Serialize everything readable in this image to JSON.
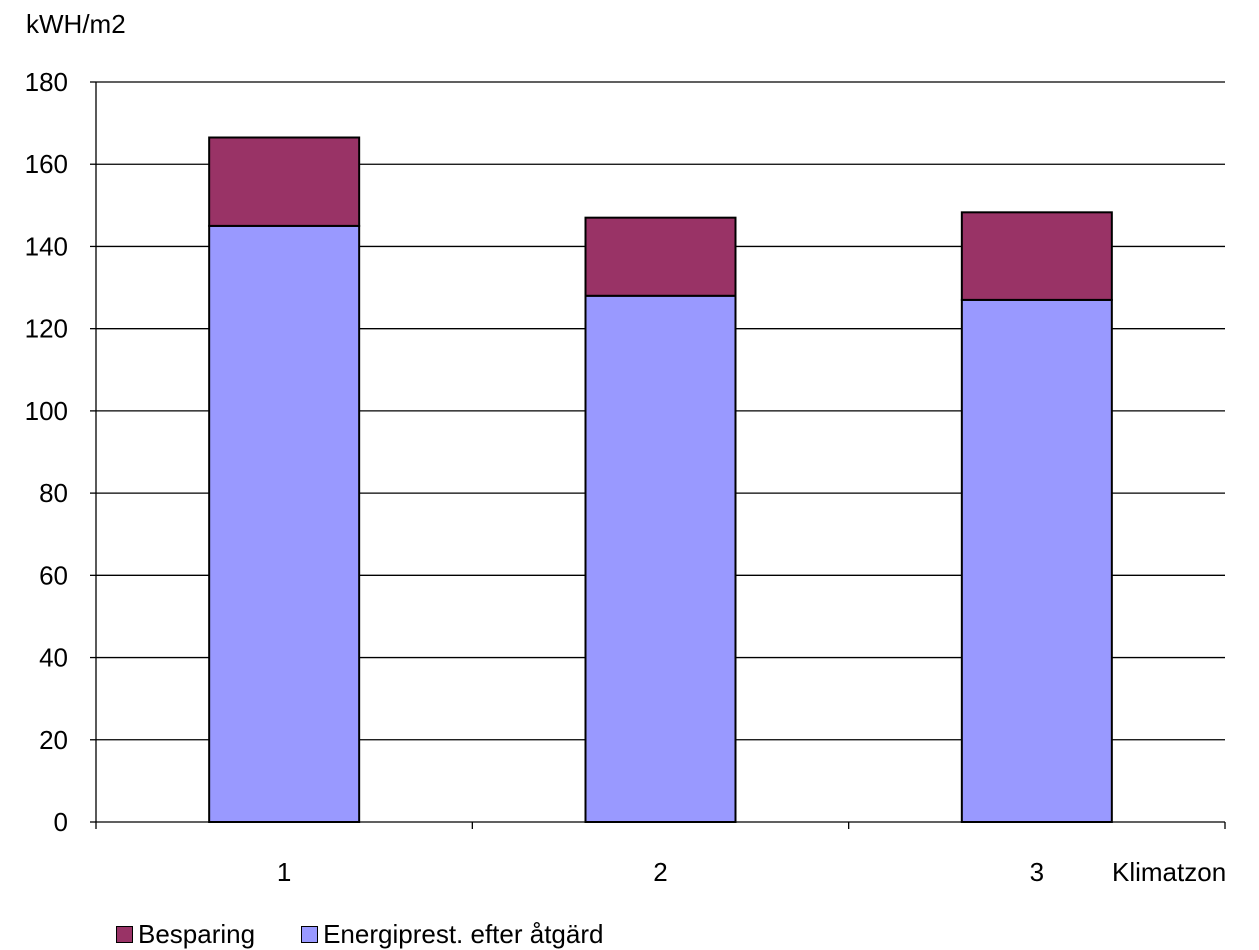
{
  "chart_data": {
    "type": "bar",
    "stacked": true,
    "ylabel": "kWH/m2",
    "xlabel": "Klimatzon",
    "categories": [
      "1",
      "2",
      "3"
    ],
    "ylim": [
      0,
      180
    ],
    "yticks": [
      0,
      20,
      40,
      60,
      80,
      100,
      120,
      140,
      160,
      180
    ],
    "grid": true,
    "legend_position": "bottom-left",
    "series": [
      {
        "name": "Energiprest. efter åtgärd",
        "values": [
          145,
          128,
          127
        ],
        "color": "#9999ff"
      },
      {
        "name": "Besparing",
        "values": [
          21.5,
          19,
          21.3
        ],
        "color": "#993366"
      }
    ],
    "legend_order": [
      1,
      0
    ]
  }
}
